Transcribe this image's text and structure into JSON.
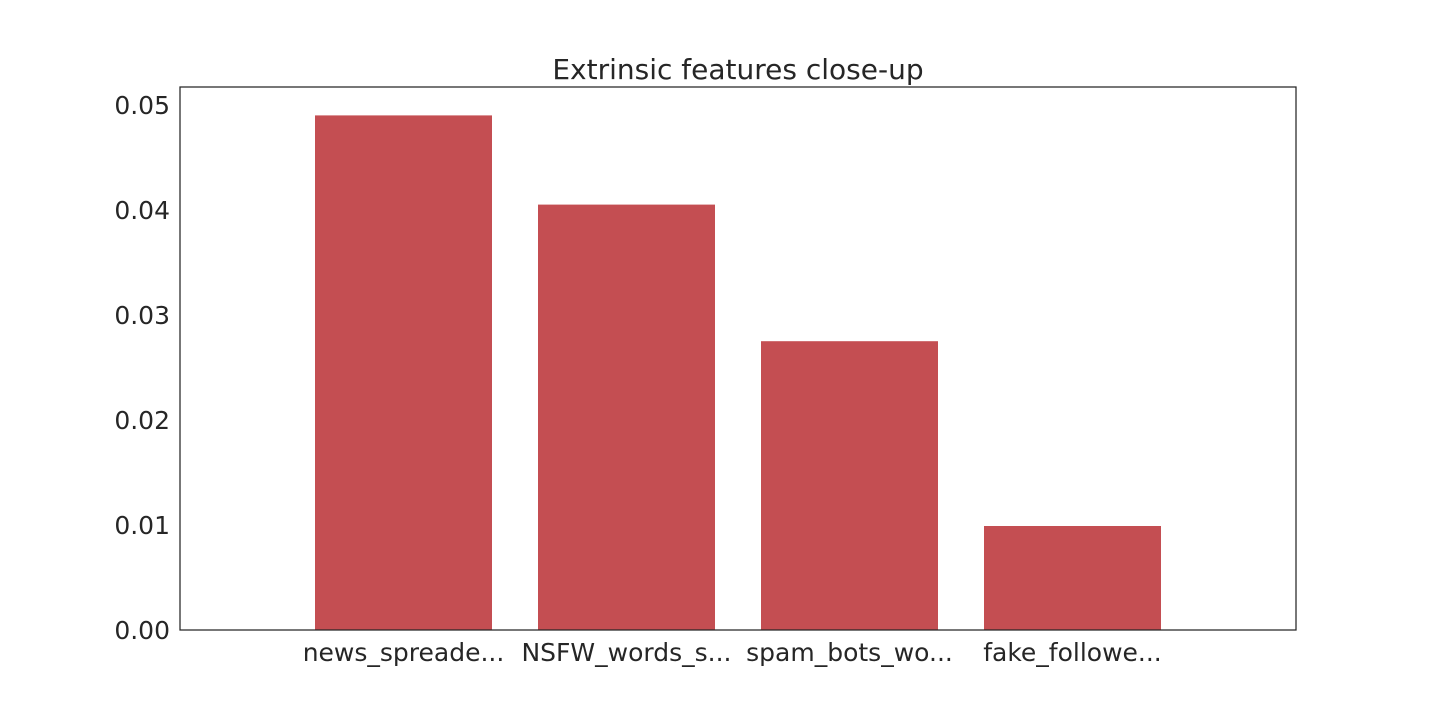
{
  "chart_data": {
    "type": "bar",
    "title": "Extrinsic features close-up",
    "xlabel": "",
    "ylabel": "",
    "categories": [
      "news_spreade...",
      "NSFW_words_s...",
      "spam_bots_wo...",
      "fake_followe..."
    ],
    "values": [
      0.049,
      0.0405,
      0.0275,
      0.0099
    ],
    "ylim": [
      0,
      0.0517
    ],
    "yticks": [
      "0.00",
      "0.01",
      "0.02",
      "0.03",
      "0.04",
      "0.05"
    ],
    "ytick_values": [
      0,
      0.01,
      0.02,
      0.03,
      0.04,
      0.05
    ],
    "bar_color": "#c44e52",
    "grid": false,
    "legend": "none"
  }
}
